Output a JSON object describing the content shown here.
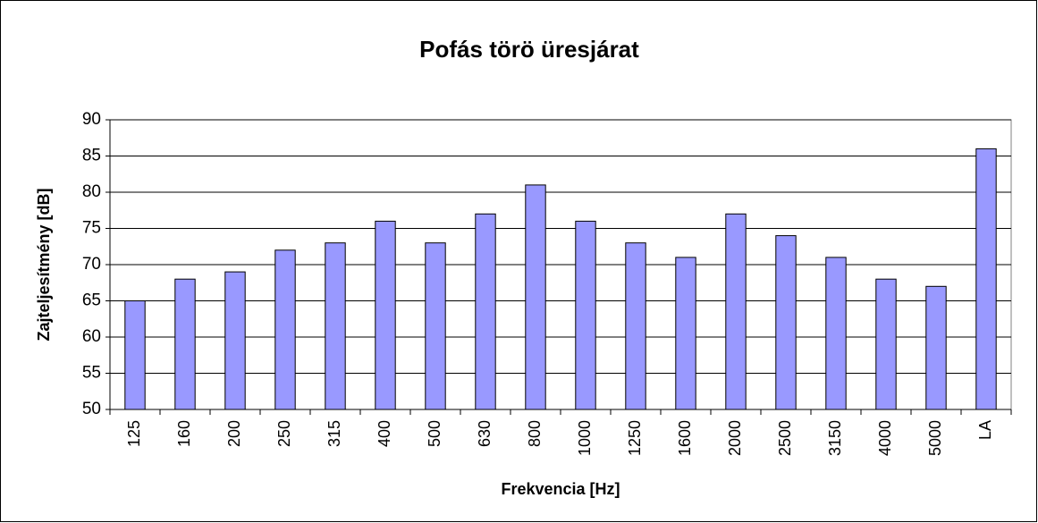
{
  "chart_data": {
    "type": "bar",
    "title": "Pofás törö üresjárat",
    "x_label": "Frekvencia [Hz]",
    "y_label": "Zajteljesítmény [dB]",
    "categories": [
      "125",
      "160",
      "200",
      "250",
      "315",
      "400",
      "500",
      "630",
      "800",
      "1000",
      "1250",
      "1600",
      "2000",
      "2500",
      "3150",
      "4000",
      "5000",
      "LA"
    ],
    "values": [
      65,
      68,
      69,
      72,
      73,
      76,
      73,
      77,
      81,
      76,
      73,
      71,
      77,
      74,
      71,
      68,
      67,
      86
    ],
    "color": "#9999ff",
    "ylim": [
      50,
      90
    ],
    "yticks": [
      50,
      55,
      60,
      65,
      70,
      75,
      80,
      85,
      90
    ],
    "grid": true
  }
}
